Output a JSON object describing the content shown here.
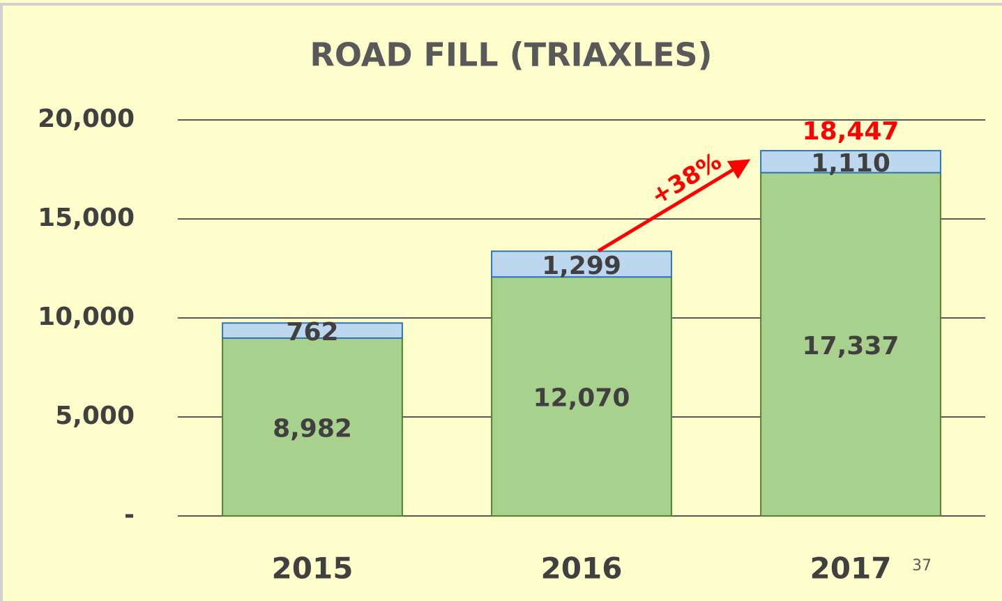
{
  "chart_data": {
    "type": "stacked_bar",
    "title": "ROAD FILL (TRIAXLES)",
    "categories": [
      "2015",
      "2016",
      "2017"
    ],
    "series": [
      {
        "color": "#a9d18e",
        "values": [
          8982,
          12070,
          17337
        ],
        "value_labels": [
          "8,982",
          "12,070",
          "17,337"
        ]
      },
      {
        "color": "#bdd7ee",
        "values": [
          762,
          1299,
          1110
        ],
        "value_labels": [
          "762",
          "1,299",
          "1,110"
        ]
      }
    ],
    "ylim": [
      0,
      20000
    ],
    "yticks": [
      {
        "value": 0,
        "label": "-"
      },
      {
        "value": 5000,
        "label": "5,000"
      },
      {
        "value": 10000,
        "label": "10,000"
      },
      {
        "value": 15000,
        "label": "15,000"
      },
      {
        "value": 20000,
        "label": "20,000"
      }
    ],
    "grid": true,
    "annotations": [
      {
        "text": "+38%",
        "color": "#ff0000"
      },
      {
        "text": "18,447",
        "color": "#ff0000"
      }
    ],
    "page_number": "37"
  }
}
